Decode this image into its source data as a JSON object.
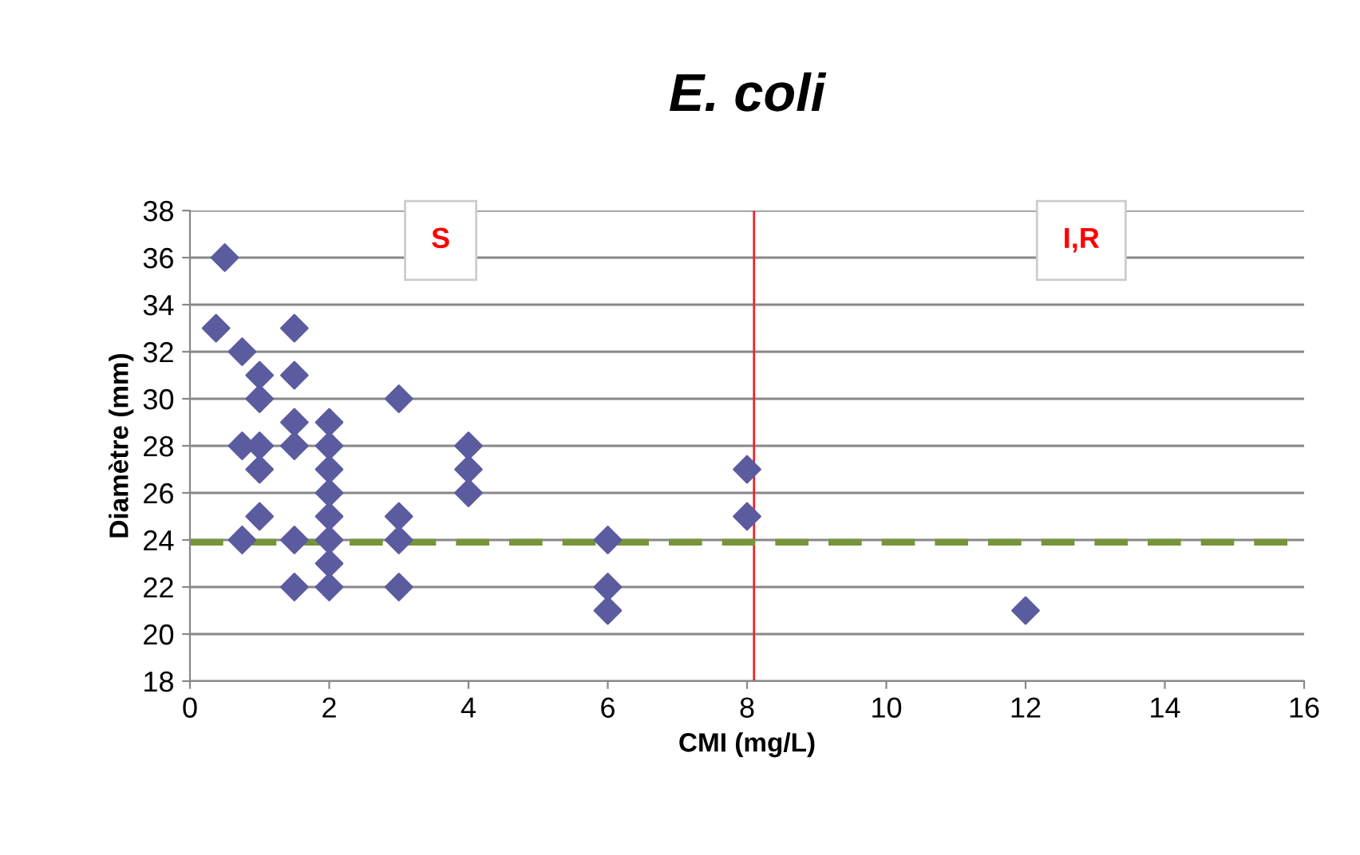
{
  "chart_data": {
    "type": "scatter",
    "title": "E. coli",
    "xlabel": "CMI (mg/L)",
    "ylabel": "Diamètre (mm)",
    "annotations": [
      "S",
      "I,R"
    ],
    "series": [
      {
        "color": "#5b5b9f",
        "x": [
          0.5,
          0.375,
          0.75,
          1,
          1,
          0.75,
          1,
          1,
          1,
          0.75,
          1.5,
          1.5,
          1.5,
          1.5,
          1.5,
          1.5,
          2,
          2,
          2,
          2,
          2,
          2,
          2,
          2,
          3,
          3,
          3,
          3,
          4,
          4,
          4,
          6,
          6,
          6,
          8,
          8,
          12
        ],
        "values": [
          36,
          33,
          32,
          31,
          30,
          28,
          28,
          27,
          25,
          24,
          33,
          31,
          29,
          28,
          24,
          22,
          29,
          28,
          27,
          26,
          25,
          24,
          23,
          22,
          30,
          25,
          24,
          22,
          28,
          27,
          26,
          24,
          22,
          21,
          27,
          25,
          21
        ]
      }
    ],
    "ref_lines": [
      {
        "axis": "x",
        "value": 8.1,
        "color": "#e8262e",
        "line_style": "solid"
      },
      {
        "axis": "y",
        "value": 23.9,
        "color": "#76953a",
        "line_style": "dashed"
      }
    ],
    "xlim": [
      0,
      16
    ],
    "xticks": [
      0,
      2,
      4,
      6,
      8,
      10,
      12,
      14,
      16
    ],
    "ylim": [
      18,
      38
    ],
    "yticks": [
      18,
      20,
      22,
      24,
      26,
      28,
      30,
      32,
      34,
      36,
      38
    ],
    "grid": "y",
    "marker": "diamond",
    "legend": false
  }
}
